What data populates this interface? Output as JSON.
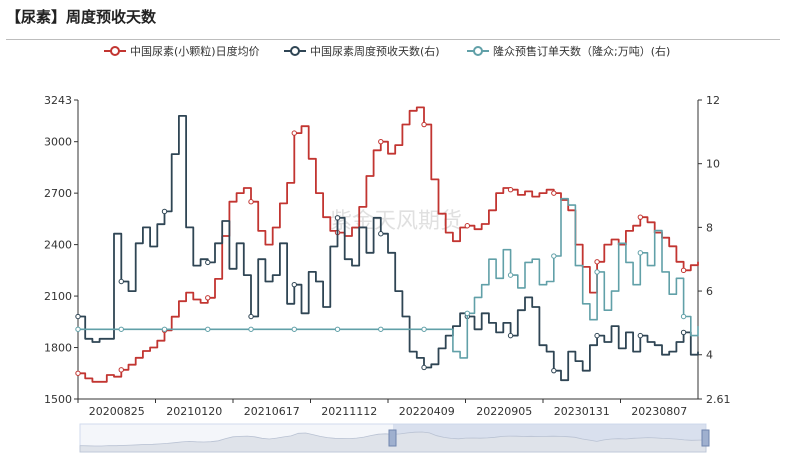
{
  "page": {
    "title": "【尿素】周度预收天数"
  },
  "legend": [
    {
      "name": "中国尿素(小颗粒)日度均价",
      "color": "#c23531"
    },
    {
      "name": "中国尿素周度预收天数(右)",
      "color": "#2f4554"
    },
    {
      "name": "隆众预售订单天数（隆众;万吨）(右)",
      "color": "#61a0a8"
    }
  ],
  "watermark": "紫金天风期货",
  "chart_data": {
    "type": "line",
    "x_ticks": [
      "20200825",
      "20210120",
      "20210617",
      "20211112",
      "20220409",
      "20220905",
      "20230131",
      "20230807"
    ],
    "y_left": {
      "min": 1500,
      "max": 3243,
      "ticks": [
        1500,
        1800,
        2100,
        2400,
        2700,
        3000,
        3243
      ]
    },
    "y_right": {
      "min": 2.61,
      "max": 12,
      "ticks": [
        2.61,
        4,
        6,
        8,
        10,
        12
      ]
    },
    "series": [
      {
        "name": "中国尿素(小颗粒)日度均价",
        "axis": "left",
        "color": "#c23531",
        "values": [
          1650,
          1620,
          1600,
          1600,
          1640,
          1630,
          1670,
          1700,
          1740,
          1780,
          1800,
          1840,
          1900,
          1980,
          2070,
          2120,
          2080,
          2060,
          2090,
          2200,
          2450,
          2650,
          2700,
          2730,
          2650,
          2480,
          2400,
          2500,
          2640,
          2760,
          3050,
          3090,
          2900,
          2700,
          2560,
          2480,
          2470,
          2450,
          2500,
          2620,
          2800,
          2950,
          3000,
          2930,
          2980,
          3100,
          3180,
          3200,
          3100,
          2780,
          2580,
          2470,
          2420,
          2500,
          2510,
          2490,
          2520,
          2600,
          2700,
          2730,
          2720,
          2690,
          2710,
          2680,
          2700,
          2720,
          2700,
          2660,
          2600,
          2400,
          2270,
          2120,
          2300,
          2400,
          2430,
          2400,
          2480,
          2510,
          2560,
          2530,
          2470,
          2440,
          2390,
          2300,
          2250,
          2280,
          2300
        ]
      },
      {
        "name": "中国尿素周度预收天数(右)",
        "axis": "right",
        "color": "#2f4554",
        "values": [
          5.2,
          4.5,
          4.4,
          4.5,
          4.5,
          7.8,
          6.3,
          6.0,
          7.5,
          8.0,
          7.4,
          8.1,
          8.5,
          10.3,
          11.5,
          8.0,
          6.8,
          7.0,
          6.9,
          7.5,
          8.2,
          6.7,
          7.5,
          6.5,
          5.2,
          7.0,
          6.3,
          6.5,
          7.5,
          5.6,
          6.2,
          5.3,
          6.6,
          6.3,
          5.5,
          7.4,
          8.3,
          7.0,
          6.8,
          8.0,
          7.2,
          8.3,
          7.8,
          7.2,
          6.0,
          5.2,
          4.1,
          3.9,
          3.6,
          3.7,
          4.2,
          4.6,
          4.9,
          5.3,
          5.2,
          4.8,
          5.3,
          5.0,
          4.7,
          5.0,
          4.6,
          5.4,
          5.8,
          5.5,
          4.3,
          4.1,
          3.5,
          3.2,
          4.1,
          3.8,
          3.5,
          4.3,
          4.6,
          4.4,
          4.9,
          4.2,
          4.7,
          4.1,
          4.6,
          4.4,
          4.3,
          4.0,
          4.1,
          4.4,
          4.7,
          4.0,
          4.1
        ]
      },
      {
        "name": "隆众预售订单天数（隆众;万吨）(右)",
        "axis": "right",
        "color": "#61a0a8",
        "values": [
          4.8,
          4.8,
          4.8,
          4.8,
          4.8,
          4.8,
          4.8,
          4.8,
          4.8,
          4.8,
          4.8,
          4.8,
          4.8,
          4.8,
          4.8,
          4.8,
          4.8,
          4.8,
          4.8,
          4.8,
          4.8,
          4.8,
          4.8,
          4.8,
          4.8,
          4.8,
          4.8,
          4.8,
          4.8,
          4.8,
          4.8,
          4.8,
          4.8,
          4.8,
          4.8,
          4.8,
          4.8,
          4.8,
          4.8,
          4.8,
          4.8,
          4.8,
          4.8,
          4.8,
          4.8,
          4.8,
          4.8,
          4.8,
          4.8,
          4.8,
          4.8,
          4.8,
          4.1,
          3.9,
          5.3,
          5.8,
          6.2,
          7.0,
          6.4,
          7.3,
          6.5,
          6.1,
          6.9,
          7.0,
          6.2,
          6.3,
          7.1,
          8.9,
          8.7,
          6.8,
          5.6,
          5.1,
          6.6,
          5.4,
          6.0,
          7.5,
          6.9,
          6.2,
          7.2,
          6.8,
          7.9,
          6.6,
          5.9,
          6.4,
          5.2,
          4.6,
          4.9
        ]
      }
    ]
  }
}
